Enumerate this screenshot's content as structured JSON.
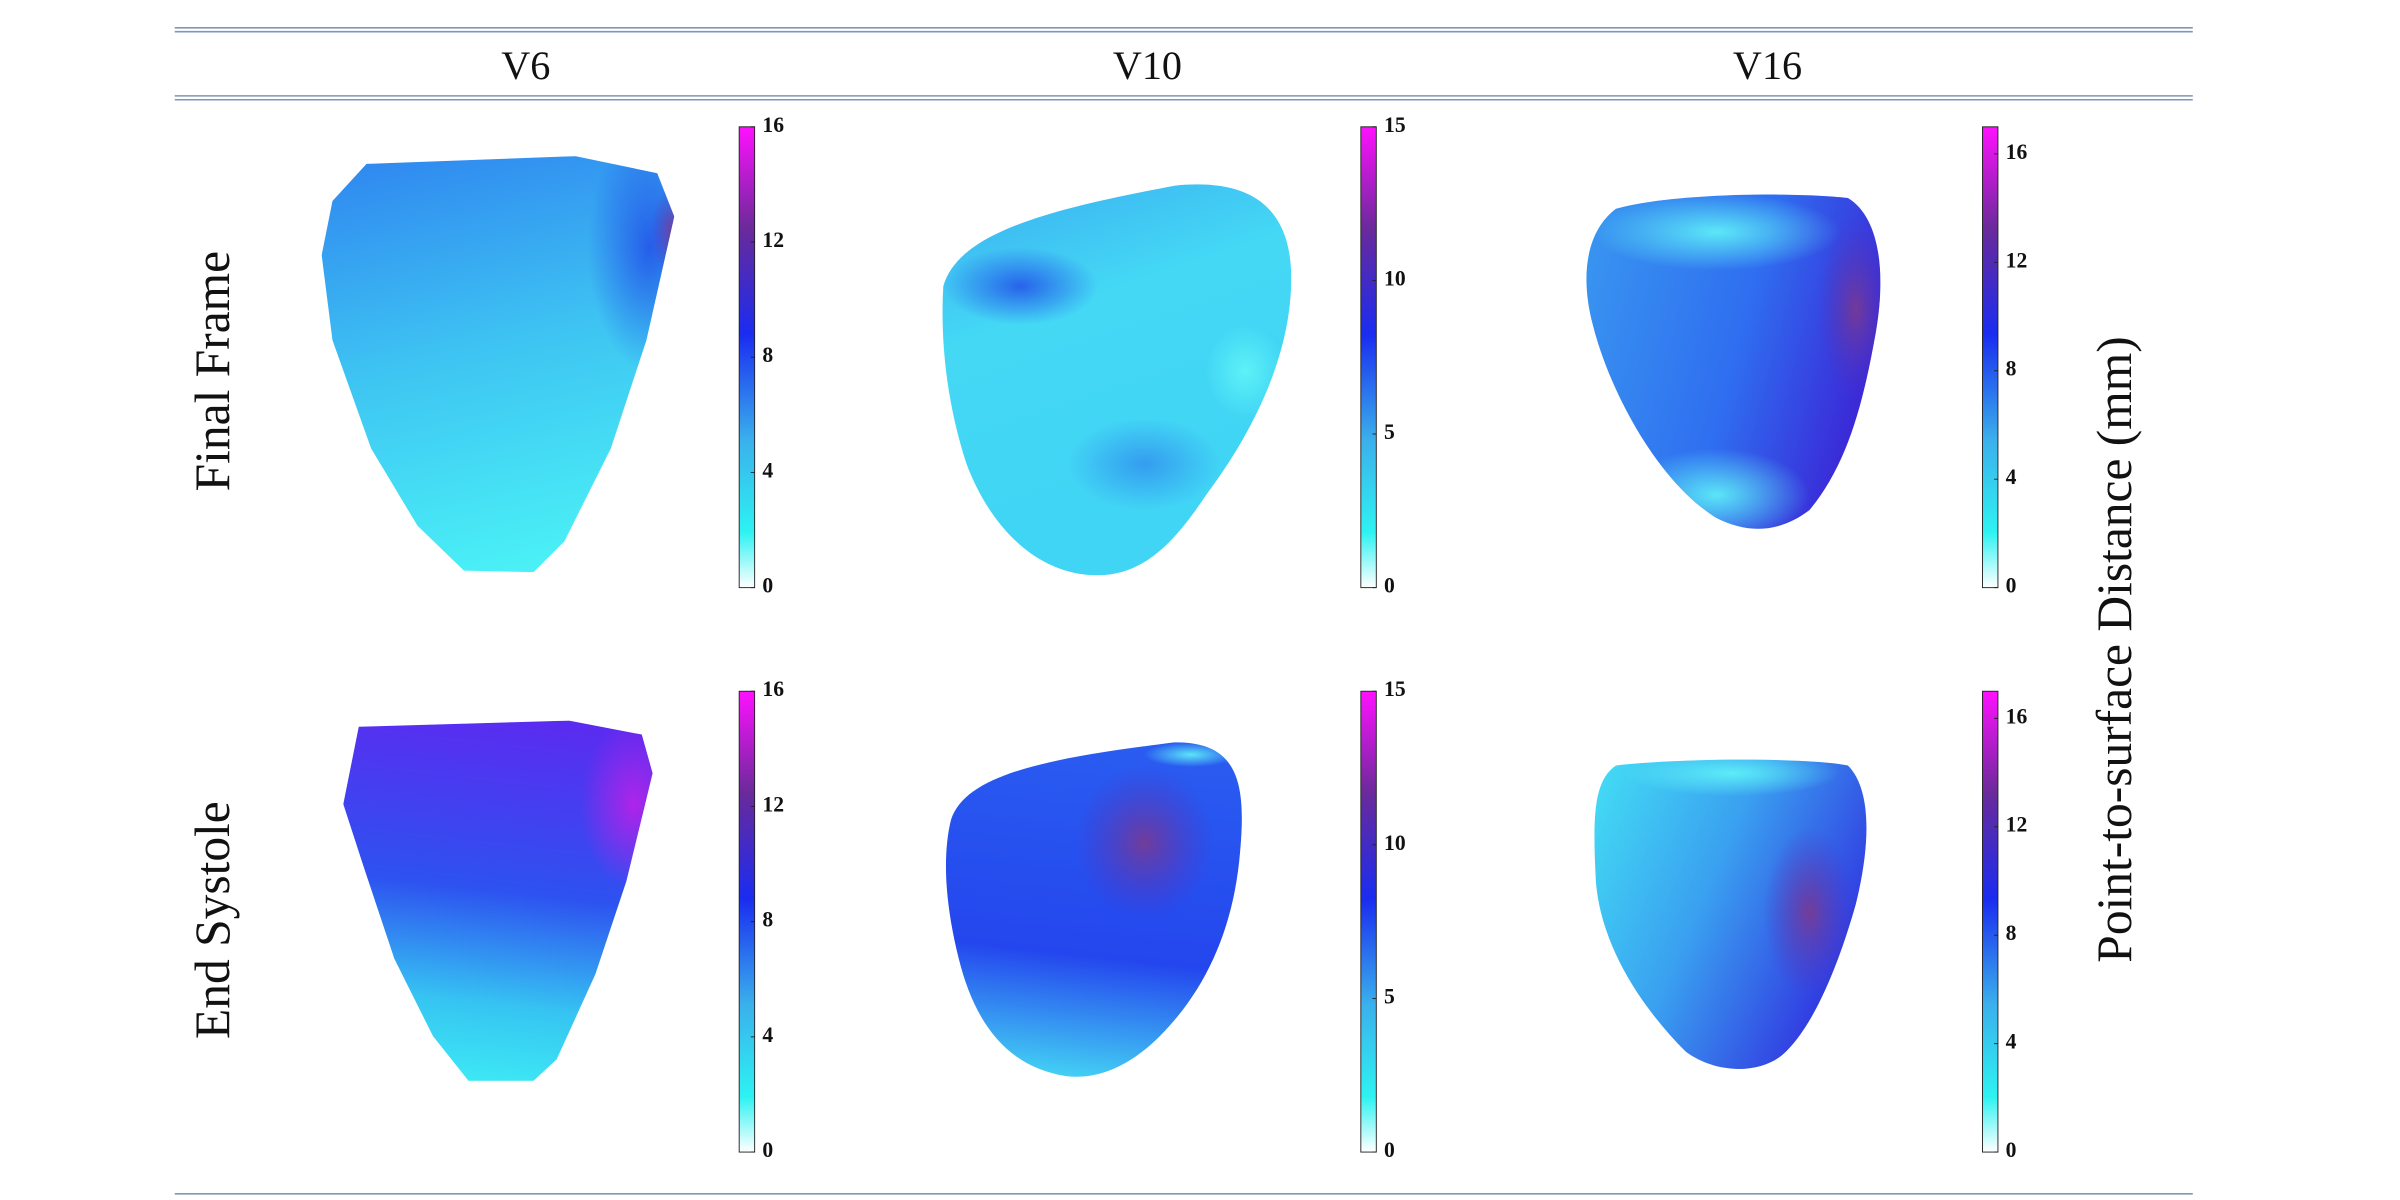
{
  "header": {
    "columns": [
      "V6",
      "V10",
      "V16"
    ]
  },
  "rows": [
    "Final Frame",
    "End Systole"
  ],
  "colorbars": [
    {
      "lim": [
        0,
        16
      ],
      "ticks": [
        0,
        4,
        8,
        12,
        16
      ]
    },
    {
      "lim": [
        0,
        15
      ],
      "ticks": [
        0,
        5,
        10,
        15
      ]
    },
    {
      "lim": [
        0,
        17
      ],
      "ticks": [
        0,
        4,
        8,
        12,
        16
      ]
    }
  ],
  "colorbar_label": "Point-to-surface Distance (mm)"
}
